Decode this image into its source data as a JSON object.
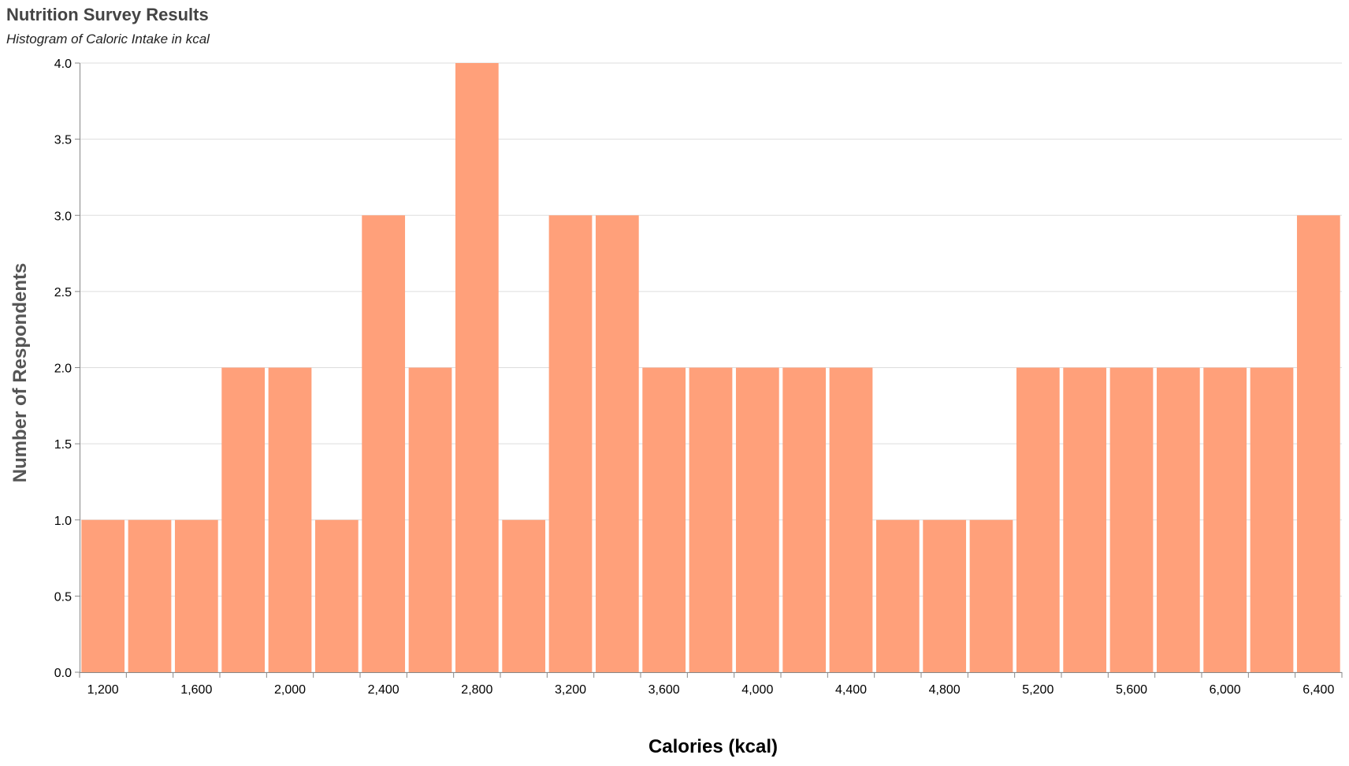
{
  "chart_data": {
    "type": "bar",
    "title": "Nutrition Survey Results",
    "subtitle": "Histogram of Caloric Intake in kcal",
    "xlabel": "Calories (kcal)",
    "ylabel": "Number of Respondents",
    "bin_width": 200,
    "bin_start": 1100,
    "values": [
      1,
      1,
      1,
      2,
      2,
      1,
      3,
      2,
      4,
      1,
      3,
      3,
      2,
      2,
      2,
      2,
      2,
      1,
      1,
      1,
      2,
      2,
      2,
      2,
      2,
      2,
      3
    ],
    "xlim": [
      1100,
      6500
    ],
    "ylim": [
      0,
      4
    ],
    "x_ticks": [
      1200,
      1600,
      2000,
      2400,
      2800,
      3200,
      3600,
      4000,
      4400,
      4800,
      5200,
      5600,
      6000,
      6400
    ],
    "x_tick_labels": [
      "1,200",
      "1,600",
      "2,000",
      "2,400",
      "2,800",
      "3,200",
      "3,600",
      "4,000",
      "4,400",
      "4,800",
      "5,200",
      "5,600",
      "6,000",
      "6,400"
    ],
    "y_ticks": [
      0,
      0.5,
      1,
      1.5,
      2,
      2.5,
      3,
      3.5,
      4
    ],
    "y_tick_labels": [
      "0.0",
      "0.5",
      "1.0",
      "1.5",
      "2.0",
      "2.5",
      "3.0",
      "3.5",
      "4.0"
    ],
    "grid": true,
    "bar_color": "#ffa07a",
    "grid_color": "#dddddd",
    "axis_color": "#888888"
  }
}
